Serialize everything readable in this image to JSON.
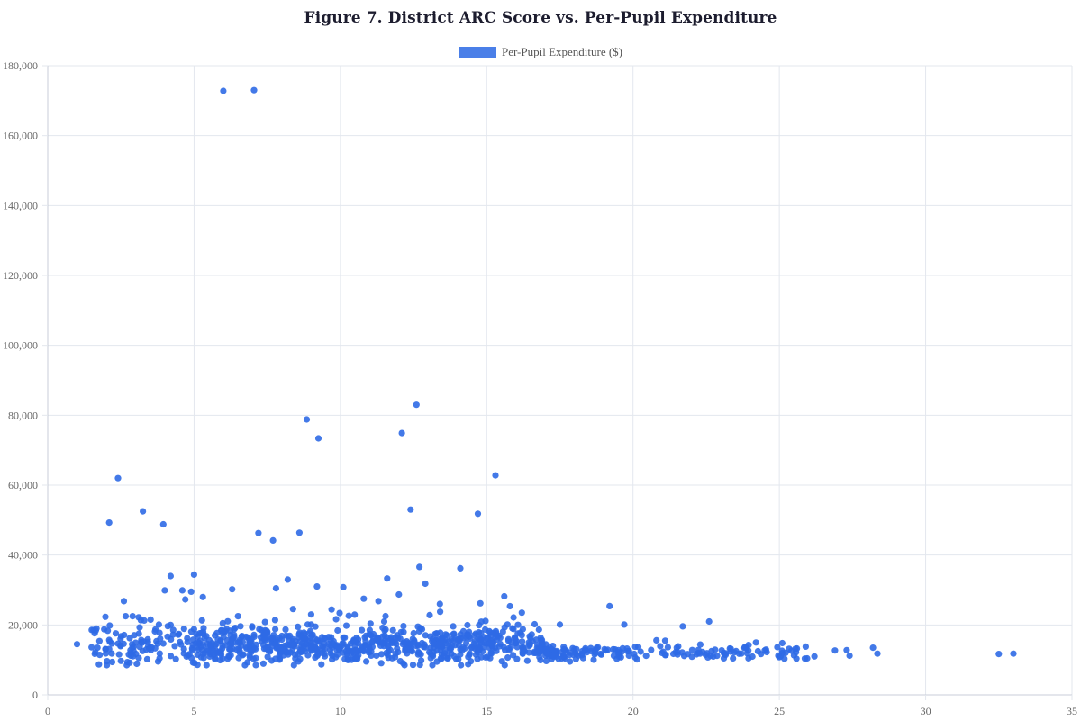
{
  "title": "Figure 7. District ARC Score vs. Per-Pupil Expenditure",
  "legend": {
    "label": "Per-Pupil Expenditure ($)",
    "color": "#4a7fe8"
  },
  "colors": {
    "point": "#2f6ae6",
    "grid": "#e3e7ee",
    "axis": "#c9ced8",
    "tick_text": "#666666"
  },
  "chart_data": {
    "type": "scatter",
    "title": "Figure 7. District ARC Score vs. Per-Pupil Expenditure",
    "xlabel": "",
    "ylabel": "",
    "legend": [
      "Per-Pupil Expenditure ($)"
    ],
    "legend_position": "top",
    "grid": true,
    "xlim": [
      0,
      35
    ],
    "ylim": [
      0,
      180000
    ],
    "x_ticks": [
      0,
      5,
      10,
      15,
      20,
      25,
      30,
      35
    ],
    "x_tick_labels": [
      "0",
      "5",
      "10",
      "15",
      "20",
      "25",
      "30",
      "35"
    ],
    "y_ticks": [
      0,
      20000,
      40000,
      60000,
      80000,
      100000,
      120000,
      140000,
      160000,
      180000
    ],
    "y_tick_labels": [
      "0",
      "20,000",
      "40,000",
      "60,000",
      "80,000",
      "100,000",
      "120,000",
      "140,000",
      "160,000",
      "180,000"
    ],
    "series": [
      {
        "name": "Per-Pupil Expenditure ($)",
        "outliers": [
          [
            6.0,
            172800
          ],
          [
            7.05,
            173000
          ],
          [
            12.6,
            83000
          ],
          [
            8.85,
            78800
          ],
          [
            12.1,
            74900
          ],
          [
            9.25,
            73400
          ],
          [
            15.3,
            62800
          ],
          [
            2.4,
            62000
          ],
          [
            12.4,
            53000
          ],
          [
            3.25,
            52500
          ],
          [
            14.7,
            51800
          ],
          [
            2.1,
            49300
          ],
          [
            3.95,
            48800
          ],
          [
            7.2,
            46300
          ],
          [
            8.6,
            46400
          ],
          [
            7.7,
            44200
          ],
          [
            12.7,
            36600
          ],
          [
            14.1,
            36200
          ],
          [
            4.2,
            34000
          ],
          [
            5.0,
            34400
          ],
          [
            11.6,
            33300
          ],
          [
            8.2,
            33000
          ],
          [
            12.9,
            31800
          ],
          [
            9.2,
            31000
          ],
          [
            10.1,
            30800
          ],
          [
            4.0,
            29900
          ],
          [
            6.3,
            30200
          ],
          [
            4.6,
            29900
          ],
          [
            4.9,
            29500
          ],
          [
            7.8,
            30500
          ],
          [
            12.0,
            28700
          ],
          [
            15.6,
            28200
          ],
          [
            2.6,
            26800
          ],
          [
            4.7,
            27300
          ],
          [
            5.3,
            28000
          ],
          [
            11.3,
            26800
          ],
          [
            10.8,
            27500
          ],
          [
            13.4,
            26000
          ],
          [
            16.2,
            23500
          ],
          [
            19.2,
            25400
          ],
          [
            22.6,
            21000
          ],
          [
            21.7,
            19600
          ],
          [
            19.7,
            20100
          ],
          [
            17.5,
            20100
          ],
          [
            3.8,
            20100
          ],
          [
            4.2,
            20000
          ],
          [
            2.9,
            22500
          ],
          [
            9.7,
            24400
          ],
          [
            9.0,
            23000
          ],
          [
            6.5,
            22500
          ],
          [
            33.0,
            11800
          ],
          [
            32.5,
            11700
          ],
          [
            28.2,
            13500
          ],
          [
            28.35,
            11800
          ],
          [
            27.3,
            12800
          ],
          [
            27.4,
            11200
          ],
          [
            26.9,
            12700
          ],
          [
            26.2,
            11000
          ],
          [
            25.9,
            13800
          ],
          [
            25.1,
            14800
          ],
          [
            1.0,
            14500
          ],
          [
            1.5,
            13600
          ],
          [
            1.7,
            13500
          ],
          [
            1.75,
            8700
          ],
          [
            2.1,
            13100
          ],
          [
            2.2,
            9400
          ],
          [
            2.5,
            9700
          ],
          [
            2.7,
            8500
          ],
          [
            2.8,
            9200
          ],
          [
            24.2,
            15000
          ],
          [
            22.3,
            14400
          ],
          [
            20.8,
            15600
          ],
          [
            21.1,
            15500
          ],
          [
            23.1,
            12000
          ],
          [
            23.9,
            11900
          ],
          [
            24.5,
            12700
          ],
          [
            25.5,
            11300
          ]
        ],
        "cluster_summary": {
          "approx_points": 1000,
          "x_range": [
            1.5,
            26
          ],
          "dense_x_range": [
            5,
            17
          ],
          "typical_y_range": [
            8500,
            22000
          ],
          "median_y_approx": 13500
        }
      }
    ]
  }
}
